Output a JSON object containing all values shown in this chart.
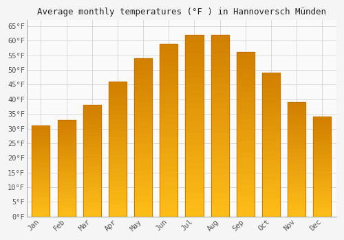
{
  "title": "Average monthly temperatures (°F ) in Hannoversch Münden",
  "months": [
    "Jan",
    "Feb",
    "Mar",
    "Apr",
    "May",
    "Jun",
    "Jul",
    "Aug",
    "Sep",
    "Oct",
    "Nov",
    "Dec"
  ],
  "values": [
    31,
    33,
    38,
    46,
    54,
    59,
    62,
    62,
    56,
    49,
    39,
    34
  ],
  "bar_color_top": "#FFA500",
  "bar_color_bottom": "#FFD060",
  "bar_edge_color": "#C87000",
  "background_color": "#F5F5F5",
  "plot_bg_color": "#FAFAFA",
  "grid_color": "#CCCCCC",
  "title_fontsize": 9,
  "tick_fontsize": 7.5,
  "ylim": [
    0,
    67
  ],
  "ytick_step": 5,
  "figsize": [
    5.0,
    3.5
  ],
  "dpi": 100
}
